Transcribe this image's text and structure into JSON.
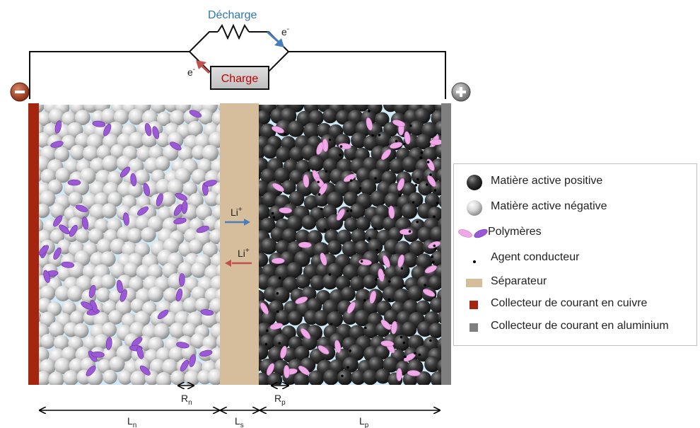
{
  "circuit": {
    "discharge_label": "Décharge",
    "charge_label": "Charge",
    "electron_label": "e",
    "electron_sup": "-",
    "negative_terminal": "−",
    "positive_terminal": "+"
  },
  "ion_flow": {
    "ion_label": "Li",
    "ion_sup": "+"
  },
  "dimensions": {
    "Rn": {
      "main": "R",
      "sub": "n"
    },
    "Rp": {
      "main": "R",
      "sub": "p"
    },
    "Ln": {
      "main": "L",
      "sub": "n"
    },
    "Ls": {
      "main": "L",
      "sub": "s"
    },
    "Lp": {
      "main": "L",
      "sub": "p"
    }
  },
  "legend": [
    {
      "label": "Matière active positive",
      "symbol": "dark-sphere"
    },
    {
      "label": "Matière active négative",
      "symbol": "light-sphere"
    },
    {
      "label": "Polymères",
      "symbol": "polymer-ellipses"
    },
    {
      "label": "Agent conducteur",
      "symbol": "dot"
    },
    {
      "label": "Séparateur",
      "symbol": "tan-rect"
    },
    {
      "label": "Collecteur de courant en cuivre",
      "symbol": "copper-rect"
    },
    {
      "label": "Collecteur de courant en aluminium",
      "symbol": "gray-rect"
    }
  ],
  "colors": {
    "electrolyte": "#cfe9f7",
    "separator": "#d6bd9b",
    "copper": "#a4260f",
    "aluminium": "#7f7f7f",
    "discharge_text": "#2e75b6",
    "charge_text": "#c00000",
    "discharge_arrow": "#4a7ebb",
    "charge_arrow": "#c0504d",
    "polymer_negative": "#9b59d6",
    "polymer_positive": "#f0a8e8"
  }
}
